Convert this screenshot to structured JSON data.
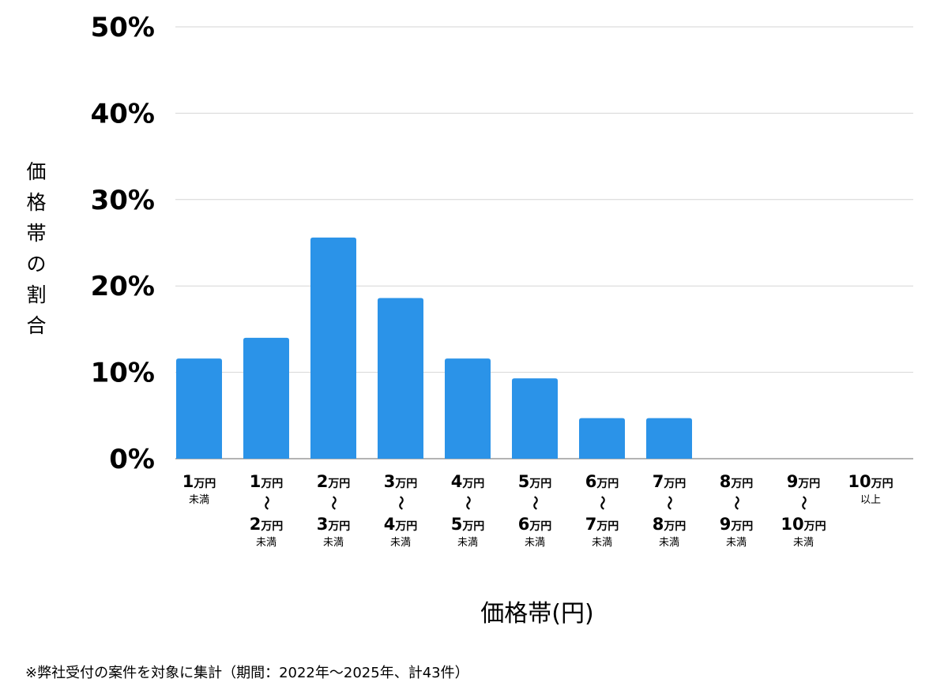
{
  "chart_data": {
    "type": "bar",
    "title": "",
    "xlabel": "価格帯(円)",
    "ylabel": "価格帯の割合",
    "ylim": [
      0,
      50
    ],
    "yticks": [
      "0%",
      "10%",
      "20%",
      "30%",
      "40%",
      "50%"
    ],
    "ytick_values": [
      0,
      10,
      20,
      30,
      40,
      50
    ],
    "grid": true,
    "bar_color": "#2b93e8",
    "unit": "万円",
    "categories": [
      {
        "from": "1",
        "to": "",
        "suffix": "未満"
      },
      {
        "from": "1",
        "to": "2",
        "suffix": "未満"
      },
      {
        "from": "2",
        "to": "3",
        "suffix": "未満"
      },
      {
        "from": "3",
        "to": "4",
        "suffix": "未満"
      },
      {
        "from": "4",
        "to": "5",
        "suffix": "未満"
      },
      {
        "from": "5",
        "to": "6",
        "suffix": "未満"
      },
      {
        "from": "6",
        "to": "7",
        "suffix": "未満"
      },
      {
        "from": "7",
        "to": "8",
        "suffix": "未満"
      },
      {
        "from": "8",
        "to": "9",
        "suffix": "未満"
      },
      {
        "from": "9",
        "to": "10",
        "suffix": "未満"
      },
      {
        "from": "10",
        "to": "",
        "suffix": "以上"
      }
    ],
    "range_mark": "〜",
    "values": [
      11.6,
      14.0,
      25.6,
      18.6,
      11.6,
      9.3,
      4.7,
      4.7,
      0,
      0,
      0
    ]
  },
  "footnote": "※弊社受付の案件を対象に集計（期間：2022年〜2025年、計43件）"
}
